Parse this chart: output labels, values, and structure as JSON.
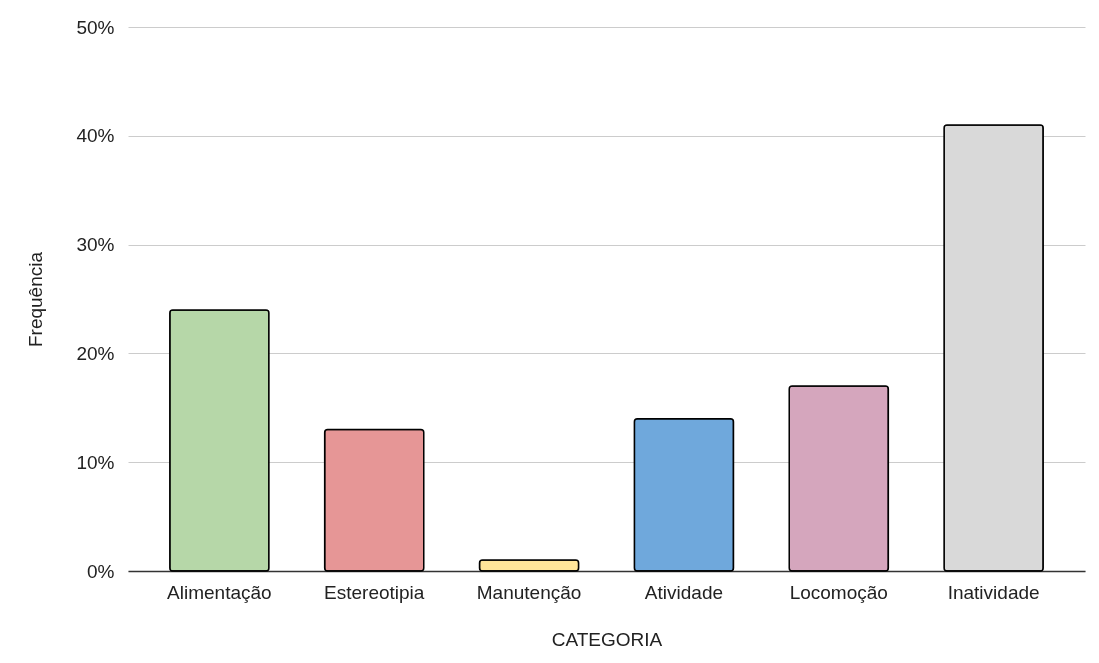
{
  "chart_data": {
    "type": "bar",
    "xlabel": "CATEGORIA",
    "ylabel": "Frequência",
    "categories": [
      "Alimentação",
      "Estereotipia",
      "Manutenção",
      "Atividade",
      "Locomoção",
      "Inatividade"
    ],
    "values": [
      24,
      13,
      1,
      14,
      17,
      41
    ],
    "colors": [
      "#b6d7a8",
      "#e69696",
      "#ffe599",
      "#6fa8dc",
      "#d5a6bd",
      "#d9d9d9"
    ],
    "ylim": [
      0,
      50
    ],
    "yticks": [
      {
        "value": 0,
        "label": "0%"
      },
      {
        "value": 10,
        "label": "10%"
      },
      {
        "value": 20,
        "label": "20%"
      },
      {
        "value": 30,
        "label": "30%"
      },
      {
        "value": 40,
        "label": "40%"
      },
      {
        "value": 50,
        "label": "50%"
      }
    ],
    "grid": "y"
  }
}
